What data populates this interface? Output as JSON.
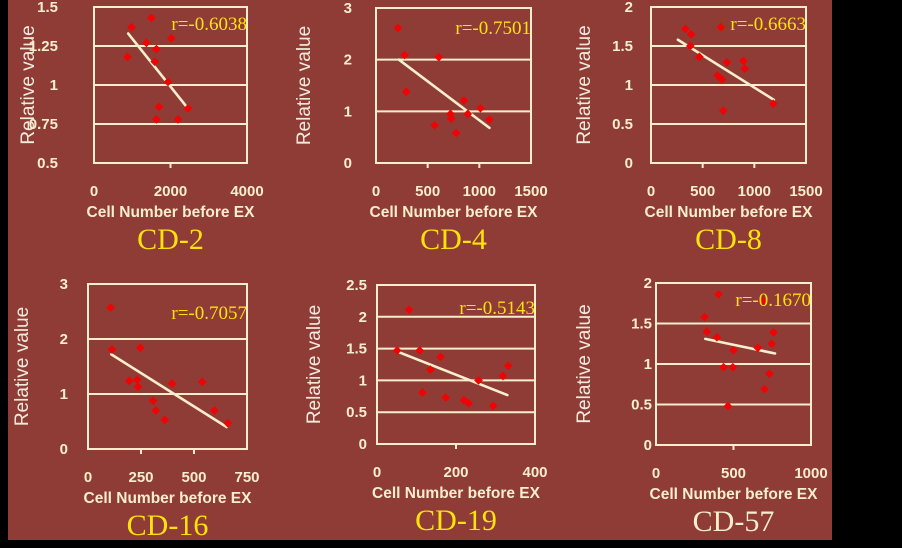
{
  "figure": {
    "background_color": "#8f3c37",
    "frame_color": "#000000",
    "line_color": "#f7eecb",
    "point_color": "#ee0404",
    "yellow_text_color": "#fde20e",
    "cream_text_color": "#f7eecb",
    "ylabel_text_color": "#f2ebdc",
    "ylabel": "Relative value",
    "xlabel": "Cell Number before EX"
  },
  "chart_data": [
    {
      "type": "scatter",
      "title": "CD-2",
      "title_color": "#fde20e",
      "r_label": "r=-0.6038",
      "xlabel": "Cell Number before EX",
      "ylabel": "Relative value",
      "xlim": [
        0,
        4000
      ],
      "ylim": [
        0.5,
        1.5
      ],
      "x_ticks": [
        0,
        2000,
        4000
      ],
      "y_ticks": [
        0.5,
        0.75,
        1,
        1.25,
        1.5
      ],
      "grid": "horizontal",
      "points": [
        [
          1501,
          1.43
        ],
        [
          980,
          1.37
        ],
        [
          2021,
          1.3
        ],
        [
          1371,
          1.27
        ],
        [
          1631,
          1.23
        ],
        [
          876,
          1.18
        ],
        [
          1588,
          1.15
        ],
        [
          1935,
          1.02
        ],
        [
          1701,
          0.86
        ],
        [
          2456,
          0.85
        ],
        [
          1631,
          0.78
        ],
        [
          2195,
          0.78
        ]
      ],
      "trend": {
        "x1": 894,
        "y1": 1.33,
        "x2": 2456,
        "y2": 0.85
      }
    },
    {
      "type": "scatter",
      "title": "CD-4",
      "title_color": "#fde20e",
      "r_label": "r=-0.7501",
      "xlabel": "Cell Number before EX",
      "ylabel": "Relative value",
      "xlim": [
        0,
        1500
      ],
      "ylim": [
        0,
        3
      ],
      "x_ticks": [
        0,
        500,
        1000,
        1500
      ],
      "y_ticks": [
        0,
        1,
        2,
        3
      ],
      "grid": "horizontal",
      "points": [
        [
          212,
          2.61
        ],
        [
          277,
          2.09
        ],
        [
          608,
          2.05
        ],
        [
          293,
          1.38
        ],
        [
          850,
          1.21
        ],
        [
          1011,
          1.06
        ],
        [
          721,
          0.95
        ],
        [
          727,
          0.86
        ],
        [
          888,
          0.95
        ],
        [
          1098,
          0.84
        ],
        [
          567,
          0.73
        ],
        [
          776,
          0.58
        ]
      ],
      "trend": {
        "x1": 222,
        "y1": 2.0,
        "x2": 1098,
        "y2": 0.68
      }
    },
    {
      "type": "scatter",
      "title": "CD-8",
      "title_color": "#fde20e",
      "r_label": "r=-0.6663",
      "xlabel": "Cell Number before EX",
      "ylabel": "Relative value",
      "xlim": [
        0,
        1500
      ],
      "ylim": [
        0,
        2
      ],
      "x_ticks": [
        0,
        500,
        1000,
        1500
      ],
      "y_ticks": [
        0,
        0.5,
        1,
        1.5,
        2
      ],
      "grid": "horizontal",
      "points": [
        [
          333,
          1.72
        ],
        [
          388,
          1.65
        ],
        [
          676,
          1.74
        ],
        [
          381,
          1.5
        ],
        [
          468,
          1.36
        ],
        [
          734,
          1.29
        ],
        [
          894,
          1.31
        ],
        [
          907,
          1.21
        ],
        [
          644,
          1.12
        ],
        [
          686,
          1.07
        ],
        [
          1183,
          0.76
        ],
        [
          699,
          0.67
        ]
      ],
      "trend": {
        "x1": 260,
        "y1": 1.58,
        "x2": 1189,
        "y2": 0.81
      }
    },
    {
      "type": "scatter",
      "title": "CD-16",
      "title_color": "#fde20e",
      "r_label": "r=-0.7057",
      "xlabel": "Cell Number before EX",
      "ylabel": "Relative value",
      "xlim": [
        0,
        750
      ],
      "ylim": [
        0,
        3
      ],
      "x_ticks": [
        0,
        250,
        500,
        750
      ],
      "y_ticks": [
        0,
        1,
        2,
        3
      ],
      "grid": "horizontal",
      "points": [
        [
          107,
          2.57
        ],
        [
          113,
          1.81
        ],
        [
          247,
          1.84
        ],
        [
          194,
          1.24
        ],
        [
          232,
          1.26
        ],
        [
          236,
          1.13
        ],
        [
          397,
          1.19
        ],
        [
          539,
          1.22
        ],
        [
          307,
          0.88
        ],
        [
          320,
          0.7
        ],
        [
          362,
          0.53
        ],
        [
          596,
          0.7
        ],
        [
          659,
          0.47
        ]
      ],
      "trend": {
        "x1": 110,
        "y1": 1.72,
        "x2": 654,
        "y2": 0.4
      }
    },
    {
      "type": "scatter",
      "title": "CD-19",
      "title_color": "#fde20e",
      "r_label": "r=-0.5143",
      "xlabel": "Cell Number before EX",
      "ylabel": "Relative value",
      "xlim": [
        0,
        400
      ],
      "ylim": [
        0,
        2.5
      ],
      "x_ticks": [
        0,
        200,
        400
      ],
      "y_ticks": [
        0,
        0.5,
        1,
        1.5,
        2,
        2.5
      ],
      "grid": "horizontal",
      "points": [
        [
          81,
          2.11
        ],
        [
          51,
          1.47
        ],
        [
          108,
          1.47
        ],
        [
          161,
          1.37
        ],
        [
          135,
          1.17
        ],
        [
          257,
          1.0
        ],
        [
          319,
          1.07
        ],
        [
          332,
          1.23
        ],
        [
          115,
          0.81
        ],
        [
          174,
          0.73
        ],
        [
          220,
          0.69
        ],
        [
          232,
          0.64
        ],
        [
          294,
          0.6
        ]
      ],
      "trend": {
        "x1": 53,
        "y1": 1.45,
        "x2": 330,
        "y2": 0.77
      }
    },
    {
      "type": "scatter",
      "title": "CD-57",
      "title_color": "#f7eecb",
      "r_label": "r=-0.1670",
      "xlabel": "Cell Number before EX",
      "ylabel": "Relative value",
      "xlim": [
        0,
        1000
      ],
      "ylim": [
        0,
        2
      ],
      "x_ticks": [
        0,
        500,
        1000
      ],
      "y_ticks": [
        0,
        0.5,
        1,
        1.5,
        2
      ],
      "grid": "horizontal",
      "points": [
        [
          403,
          1.86
        ],
        [
          688,
          1.78
        ],
        [
          313,
          1.58
        ],
        [
          328,
          1.4
        ],
        [
          393,
          1.33
        ],
        [
          758,
          1.39
        ],
        [
          657,
          1.2
        ],
        [
          747,
          1.25
        ],
        [
          500,
          1.17
        ],
        [
          436,
          0.96
        ],
        [
          496,
          0.96
        ],
        [
          732,
          0.88
        ],
        [
          700,
          0.69
        ],
        [
          464,
          0.48
        ]
      ],
      "trend": {
        "x1": 318,
        "y1": 1.31,
        "x2": 768,
        "y2": 1.13
      }
    }
  ]
}
